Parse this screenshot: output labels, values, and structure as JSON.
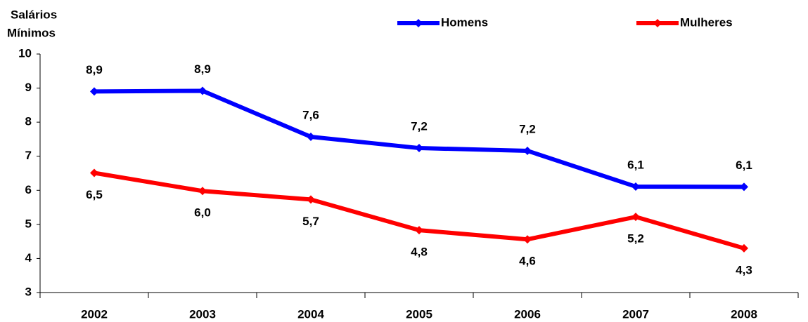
{
  "chart_data": {
    "type": "line",
    "ylabel": [
      "Salários",
      "Mínimos"
    ],
    "categories": [
      "2002",
      "2003",
      "2004",
      "2005",
      "2006",
      "2007",
      "2008"
    ],
    "series": [
      {
        "name": "Homens",
        "color": "#0000ff",
        "values": [
          8.9,
          8.92,
          7.57,
          7.24,
          7.16,
          6.11,
          6.1
        ],
        "value_labels": [
          "8,9",
          "8,9",
          "7,6",
          "7,2",
          "7,2",
          "6,1",
          "6,1"
        ],
        "label_position": "above"
      },
      {
        "name": "Mulheres",
        "color": "#ff0000",
        "values": [
          6.51,
          5.98,
          5.73,
          4.83,
          4.56,
          5.22,
          4.3
        ],
        "value_labels": [
          "6,5",
          "6,0",
          "5,7",
          "4,8",
          "4,6",
          "5,2",
          "4,3"
        ],
        "label_position": "below"
      }
    ],
    "ylim": [
      3,
      10
    ],
    "yticks": [
      3,
      4,
      5,
      6,
      7,
      8,
      9,
      10
    ],
    "grid": false,
    "legend": "top"
  }
}
